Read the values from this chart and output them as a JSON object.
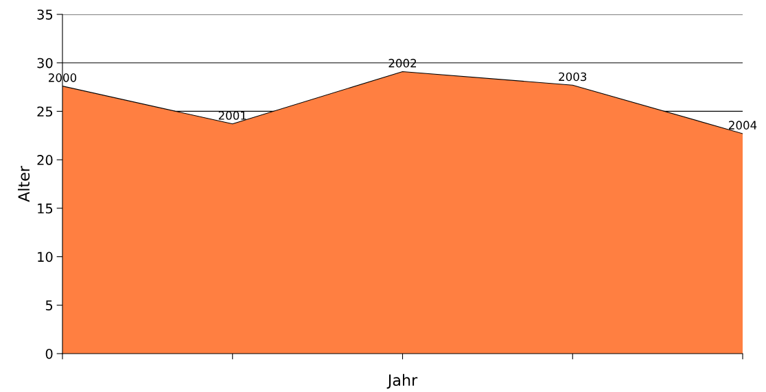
{
  "chart_data": {
    "type": "area",
    "xlabel": "Jahr",
    "ylabel": "Alter",
    "categories": [
      null,
      null,
      null,
      null,
      null
    ],
    "series": [
      {
        "color": "#ff7f41",
        "values": [
          27.6,
          23.7,
          29.1,
          27.7,
          22.7
        ]
      }
    ],
    "annotations": [
      {
        "text": "2000",
        "y": 27.6
      },
      {
        "text": "2001",
        "y": 23.7
      },
      {
        "text": "2002",
        "y": 29.1
      },
      {
        "text": "2003",
        "y": 27.7
      },
      {
        "text": "2004",
        "y": 22.7
      }
    ],
    "ylim": [
      0,
      35
    ],
    "yticks": [
      0,
      5,
      10,
      15,
      20,
      25,
      30,
      35
    ],
    "grid": "y"
  }
}
